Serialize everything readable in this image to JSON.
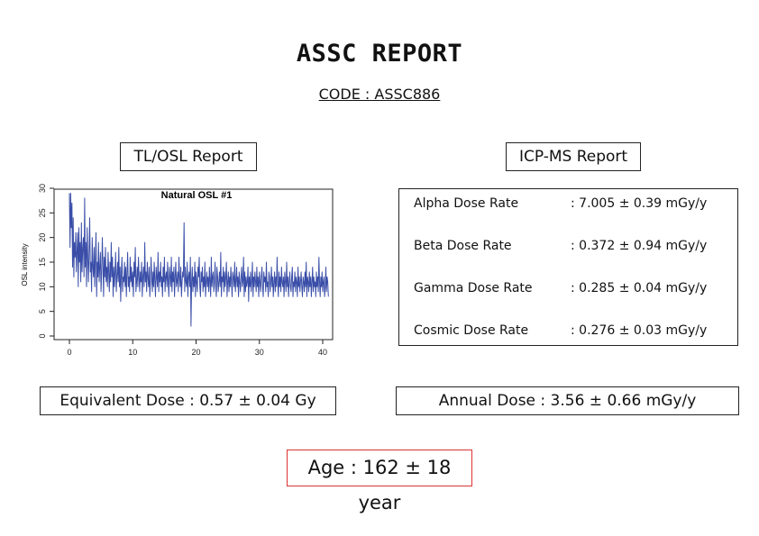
{
  "report": {
    "title": "ASSC REPORT",
    "code": "CODE : ASSC886"
  },
  "sections": {
    "tlosl_label": "TL/OSL Report",
    "icpms_label": "ICP-MS Report"
  },
  "icpms": {
    "rows": [
      {
        "name": "Alpha Dose Rate",
        "value": ": 7.005 ± 0.39 mGy/y"
      },
      {
        "name": "Beta Dose Rate",
        "value": ": 0.372 ± 0.94 mGy/y"
      },
      {
        "name": "Gamma Dose Rate",
        "value": ": 0.285 ± 0.04 mGy/y"
      },
      {
        "name": "Cosmic Dose Rate",
        "value": ": 0.276 ± 0.03 mGy/y"
      }
    ]
  },
  "results": {
    "equivalent_dose": "Equivalent Dose : 0.57 ± 0.04 Gy",
    "annual_dose": "Annual Dose : 3.56 ± 0.66 mGy/y",
    "age": "Age : 162 ± 18 year"
  },
  "colors": {
    "series": "#3a4ea8",
    "age_border": "#dd3333"
  },
  "chart_data": {
    "type": "line",
    "title": "Natural OSL #1",
    "xlabel": "",
    "ylabel": "OSL intensity",
    "xlim": [
      0,
      40
    ],
    "ylim": [
      0,
      30
    ],
    "x_ticks": [
      0,
      10,
      20,
      30,
      40
    ],
    "y_ticks": [
      0,
      5,
      10,
      15,
      20,
      25,
      30
    ],
    "x_step": 0.1,
    "series": [
      {
        "values": [
          29,
          18,
          29,
          22,
          27,
          14,
          24,
          12,
          19,
          16,
          21,
          13,
          17,
          21,
          10,
          22,
          15,
          19,
          11,
          23,
          13,
          18,
          20,
          12,
          28,
          14,
          19,
          10,
          22,
          16,
          11,
          17,
          24,
          13,
          15,
          9,
          20,
          14,
          12,
          18,
          10,
          16,
          21,
          8,
          15,
          12,
          19,
          11,
          14,
          17,
          9,
          13,
          20,
          15,
          8,
          16,
          12,
          18,
          11,
          14,
          10,
          17,
          13,
          9,
          15,
          11,
          19,
          12,
          16,
          8,
          14,
          10,
          13,
          17,
          9,
          12,
          15,
          11,
          18,
          10,
          14,
          7,
          13,
          16,
          9,
          12,
          11,
          15,
          10,
          14,
          8,
          13,
          17,
          10,
          12,
          9,
          16,
          11,
          14,
          10,
          13,
          8,
          15,
          12,
          18,
          9,
          11,
          14,
          10,
          16,
          12,
          9,
          13,
          11,
          15,
          8,
          12,
          14,
          10,
          19,
          11,
          13,
          9,
          15,
          12,
          10,
          14,
          8,
          11,
          16,
          12,
          9,
          13,
          10,
          15,
          11,
          8,
          14,
          12,
          10,
          17,
          9,
          13,
          11,
          15,
          10,
          12,
          8,
          14,
          11,
          16,
          9,
          12,
          13,
          10,
          15,
          11,
          8,
          14,
          12,
          10,
          16,
          9,
          13,
          11,
          14,
          8,
          12,
          15,
          10,
          11,
          13,
          9,
          16,
          12,
          10,
          14,
          8,
          11,
          13,
          12,
          23,
          9,
          14,
          11,
          10,
          15,
          8,
          12,
          13,
          10,
          16,
          2,
          11,
          14,
          9,
          12,
          10,
          15,
          8,
          13,
          11,
          9,
          14,
          12,
          16,
          10,
          8,
          13,
          11,
          14,
          9,
          12,
          10,
          15,
          8,
          11,
          13,
          10,
          12,
          9,
          14,
          11,
          8,
          16,
          10,
          12,
          13,
          9,
          11,
          15,
          10,
          8,
          14,
          12,
          9,
          11,
          13,
          10,
          17,
          8,
          12,
          11,
          14,
          9,
          13,
          10,
          12,
          15,
          8,
          11,
          13,
          9,
          12,
          10,
          14,
          11,
          8,
          13,
          12,
          10,
          15,
          9,
          11,
          14,
          10,
          12,
          8,
          13,
          11,
          9,
          12,
          14,
          10,
          11,
          16,
          8,
          13,
          9,
          12,
          10,
          11,
          14,
          7,
          12,
          10,
          13,
          9,
          11,
          15,
          8,
          12,
          10,
          13,
          11,
          9,
          14,
          10,
          12,
          8,
          13,
          11,
          9,
          12,
          14,
          10,
          8,
          13,
          11,
          12,
          9,
          15,
          10,
          11,
          8,
          13,
          12,
          9,
          11,
          14,
          10,
          12,
          8,
          11,
          13,
          9,
          12,
          10,
          16,
          11,
          8,
          13,
          10,
          12,
          9,
          14,
          11,
          10,
          12,
          8,
          13,
          11,
          9,
          15,
          10,
          12,
          8,
          11,
          13,
          10,
          9,
          12,
          14,
          8,
          11,
          10,
          13,
          9,
          12,
          11,
          8,
          14,
          10,
          12,
          9,
          11,
          13,
          10,
          8,
          12,
          11,
          9,
          13,
          10,
          15,
          8,
          12,
          11,
          9,
          13,
          10,
          12,
          8,
          11,
          14,
          9,
          12,
          10,
          11,
          8,
          13,
          10,
          12,
          9,
          16,
          11,
          8,
          12,
          10,
          13,
          9,
          11,
          12,
          8,
          10,
          14,
          9,
          12,
          11,
          8
        ]
      }
    ]
  }
}
